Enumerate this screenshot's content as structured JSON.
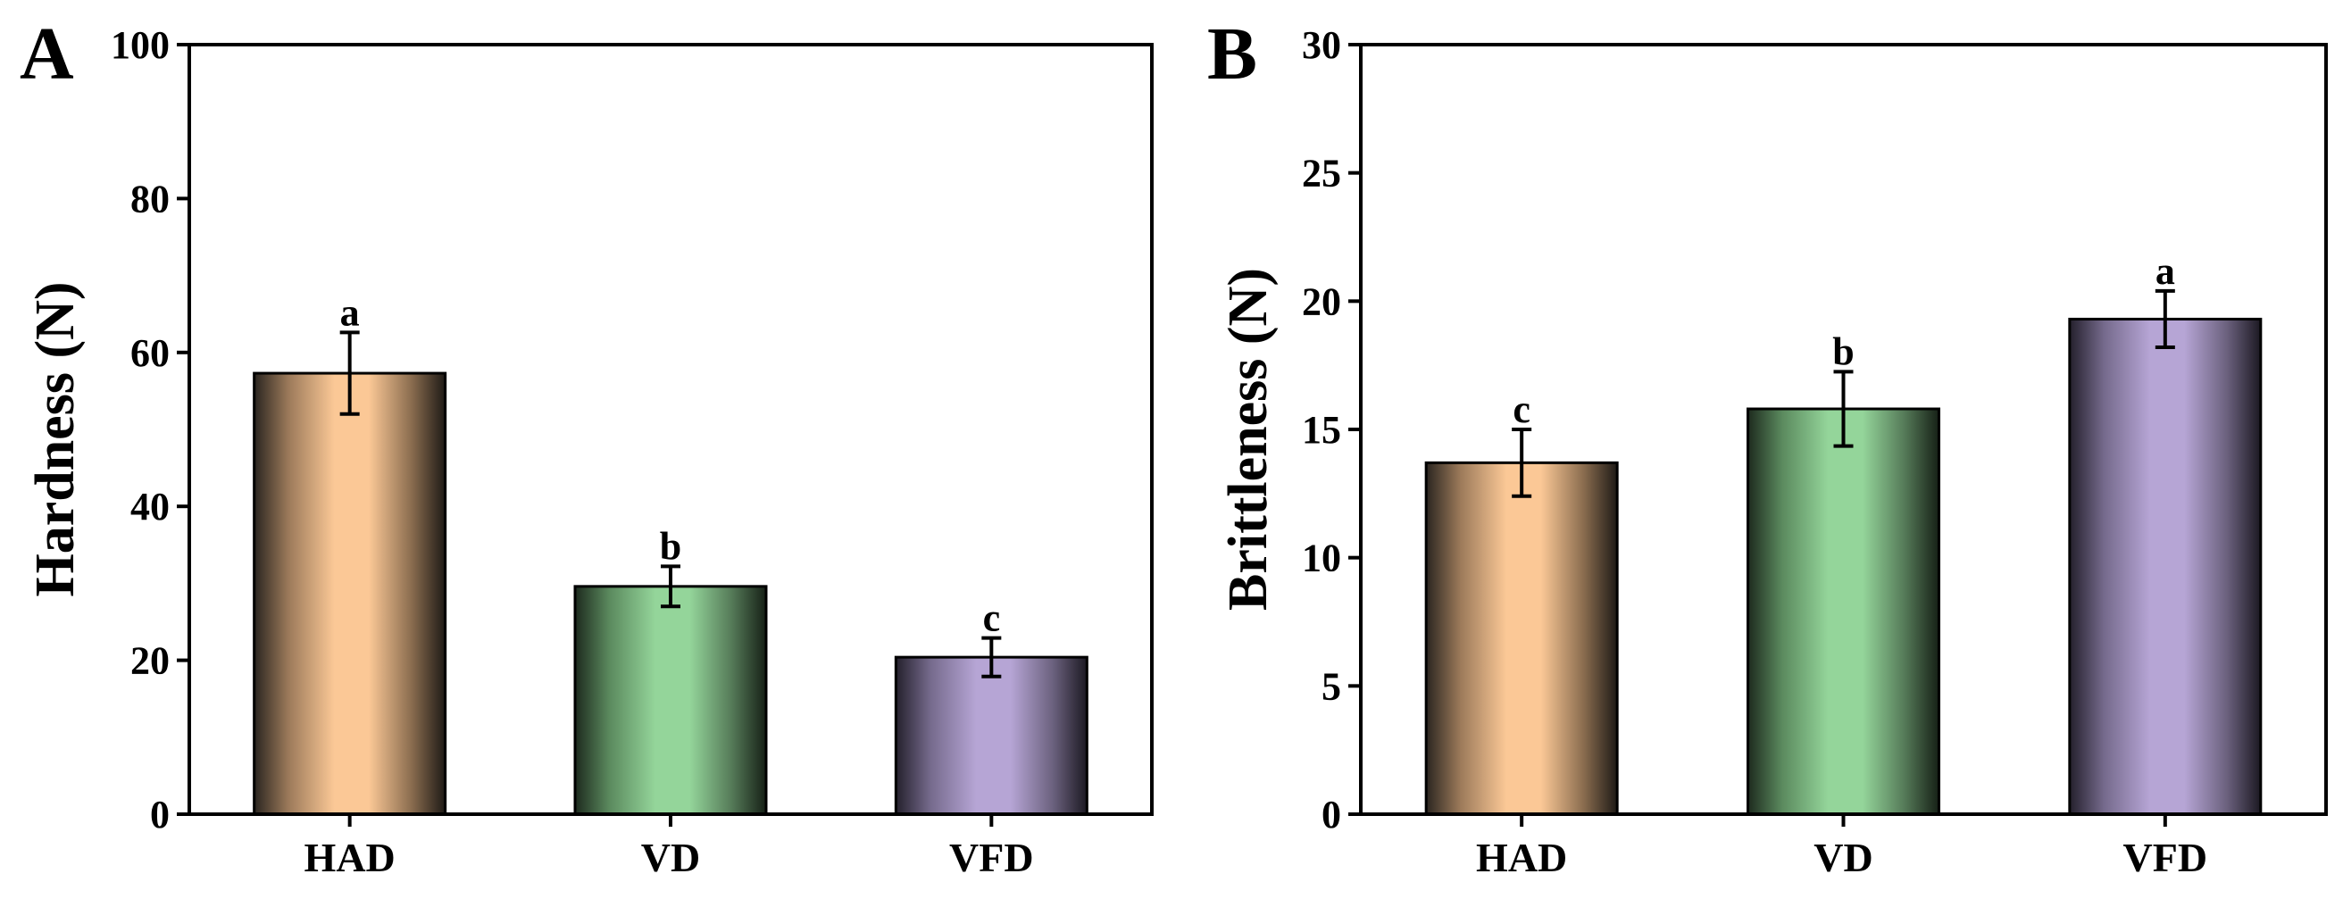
{
  "chart_data": [
    {
      "panel": "A",
      "type": "bar",
      "title": "",
      "xlabel": "",
      "ylabel": "Hardness (N)",
      "categories": [
        "HAD",
        "VD",
        "VFD"
      ],
      "values": [
        57.3,
        29.6,
        20.4
      ],
      "errors": [
        5.3,
        2.6,
        2.5
      ],
      "significance": [
        "a",
        "b",
        "c"
      ],
      "ylim": [
        0,
        100
      ],
      "yticks": [
        0,
        20,
        40,
        60,
        80,
        100
      ],
      "grid": false
    },
    {
      "panel": "B",
      "type": "bar",
      "title": "",
      "xlabel": "",
      "ylabel": "Brittleness (N)",
      "categories": [
        "HAD",
        "VD",
        "VFD"
      ],
      "values": [
        13.7,
        15.8,
        19.3
      ],
      "errors": [
        1.3,
        1.45,
        1.1
      ],
      "significance": [
        "c",
        "b",
        "a"
      ],
      "ylim": [
        0,
        30
      ],
      "yticks": [
        0,
        5,
        10,
        15,
        20,
        25,
        30
      ],
      "grid": false
    }
  ],
  "colors": {
    "HAD": "#FBC896",
    "VD": "#94D59A",
    "VFD": "#B6A5D5",
    "axis": "#000000"
  }
}
